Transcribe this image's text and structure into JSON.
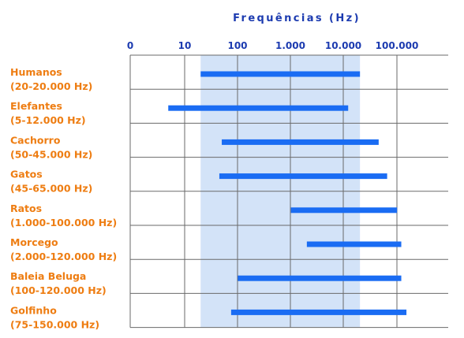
{
  "colors": {
    "title": "#1c3bb0",
    "ticks": "#1c3bb0",
    "labels": "#ee7d12",
    "bar": "#1a6cf3",
    "band": "#d3e3f8",
    "grid": "#6a6a6a"
  },
  "chart_data": {
    "type": "bar",
    "orientation": "horizontal range",
    "title": "Frequências (Hz)",
    "x_scale": "log",
    "x_ticks": [
      "0",
      "10",
      "100",
      "1.000",
      "10.000",
      "100.000"
    ],
    "human_audible_band_hz": [
      20,
      20000
    ],
    "categories": [
      {
        "name": "Humanos",
        "range_label": "(20-20.000 Hz)",
        "min_hz": 20,
        "max_hz": 20000
      },
      {
        "name": "Elefantes",
        "range_label": "(5-12.000 Hz)",
        "min_hz": 5,
        "max_hz": 12000
      },
      {
        "name": "Cachorro",
        "range_label": "(50-45.000 Hz)",
        "min_hz": 50,
        "max_hz": 45000
      },
      {
        "name": "Gatos",
        "range_label": "(45-65.000 Hz)",
        "min_hz": 45,
        "max_hz": 65000
      },
      {
        "name": "Ratos",
        "range_label": "(1.000-100.000 Hz)",
        "min_hz": 1000,
        "max_hz": 100000
      },
      {
        "name": "Morcego",
        "range_label": "(2.000-120.000 Hz)",
        "min_hz": 2000,
        "max_hz": 120000
      },
      {
        "name": "Baleia Beluga",
        "range_label": "(100-120.000 Hz)",
        "min_hz": 100,
        "max_hz": 120000
      },
      {
        "name": "Golfinho",
        "range_label": "(75-150.000 Hz)",
        "min_hz": 75,
        "max_hz": 150000
      }
    ]
  }
}
